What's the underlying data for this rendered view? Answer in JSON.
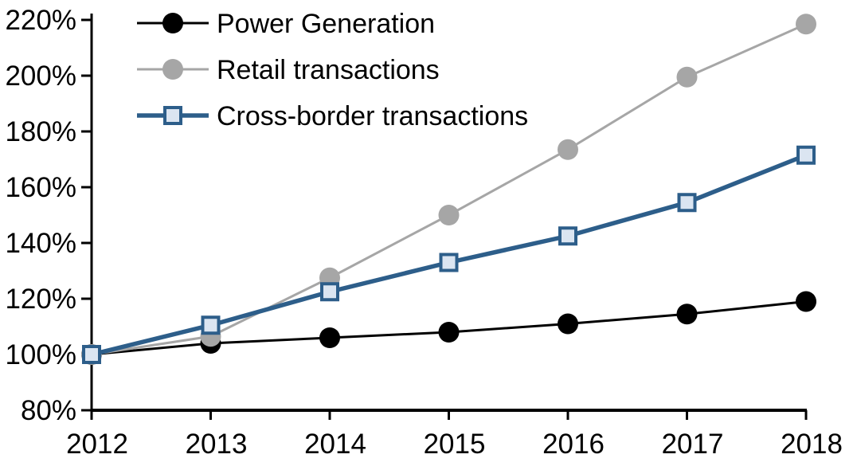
{
  "chart_data": {
    "type": "line",
    "title": "",
    "xlabel": "",
    "ylabel": "",
    "categories": [
      "2012",
      "2013",
      "2014",
      "2015",
      "2016",
      "2017",
      "2018"
    ],
    "series": [
      {
        "name": "Power Generation",
        "values": [
          100,
          104,
          106,
          108,
          111,
          114.5,
          119
        ],
        "line_color": "#000000",
        "line_width": 3,
        "marker": "circle",
        "marker_fill": "#000000",
        "marker_border": "#000000"
      },
      {
        "name": "Retail transactions",
        "values": [
          100,
          106.5,
          127.5,
          150,
          173.5,
          199.5,
          218.5
        ],
        "line_color": "#A6A6A6",
        "line_width": 3,
        "marker": "circle",
        "marker_fill": "#A6A6A6",
        "marker_border": "#A6A6A6"
      },
      {
        "name": "Cross-border transactions",
        "values": [
          100,
          110.5,
          122.5,
          133,
          142.5,
          154.5,
          171.5
        ],
        "line_color": "#2D5E8A",
        "line_width": 5.5,
        "marker": "square",
        "marker_fill": "#DBE5F1",
        "marker_border": "#2D5E8A"
      }
    ],
    "y_axis": {
      "min": 80,
      "max": 220,
      "step": 20,
      "tick_labels": [
        "80%",
        "100%",
        "120%",
        "140%",
        "160%",
        "180%",
        "200%",
        "220%"
      ]
    },
    "x_tick_labels": [
      "2012",
      "2013",
      "2014",
      "2015",
      "2016",
      "2017",
      "2018"
    ],
    "grid": "off",
    "legend_position": "top-left",
    "axis_color": "#000000",
    "background_color": "#ffffff"
  }
}
